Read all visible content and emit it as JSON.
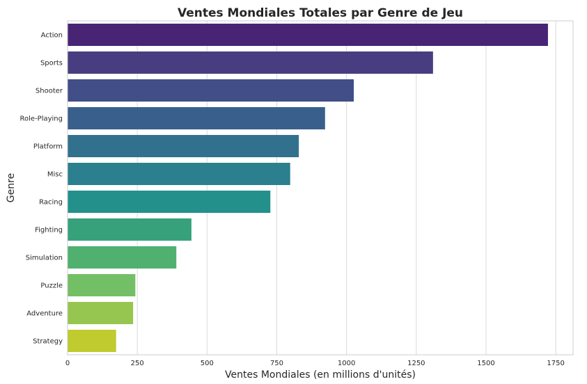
{
  "chart_data": {
    "type": "bar",
    "orientation": "horizontal",
    "title": "Ventes Mondiales Totales par Genre de Jeu",
    "xlabel": "Ventes Mondiales (en millions d'unités)",
    "ylabel": "Genre",
    "xlim": [
      0,
      1812
    ],
    "xticks": [
      0,
      250,
      500,
      750,
      1000,
      1250,
      1500,
      1750
    ],
    "grid": "vertical",
    "categories": [
      "Action",
      "Sports",
      "Shooter",
      "Role-Playing",
      "Platform",
      "Misc",
      "Racing",
      "Fighting",
      "Simulation",
      "Puzzle",
      "Adventure",
      "Strategy"
    ],
    "values": [
      1722,
      1310,
      1026,
      923,
      829,
      798,
      727,
      444,
      390,
      243,
      235,
      174
    ],
    "colors": [
      "#482475",
      "#483d80",
      "#414e87",
      "#39608c",
      "#32718e",
      "#2b7f8e",
      "#23908c",
      "#37a17c",
      "#4fb070",
      "#73bf65",
      "#96c650",
      "#bfcb2e"
    ]
  }
}
